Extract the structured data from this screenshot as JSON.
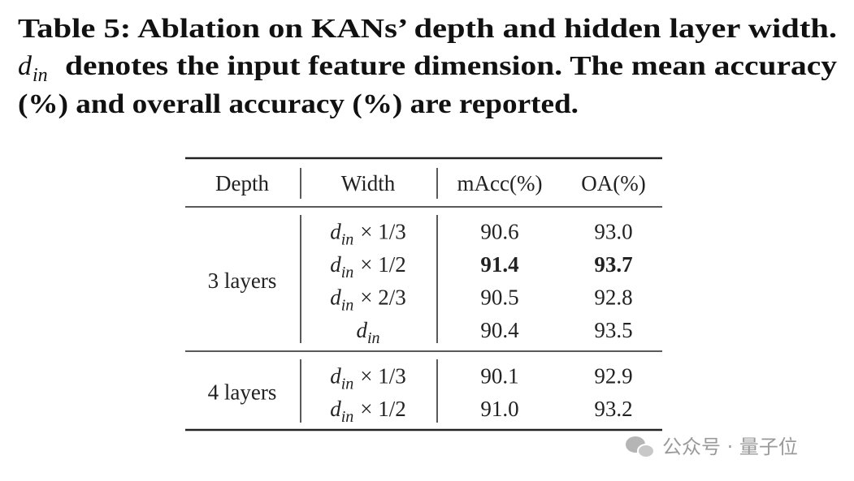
{
  "caption": {
    "title": "Table 5: Ablation on KANs’ depth and hidden layer width.",
    "symbol": {
      "base": "d",
      "sub": "in"
    },
    "lines": [
      "denotes the input feature dimension. The mean accuracy",
      "(%) and overall accuracy (%) are reported."
    ]
  },
  "table": {
    "headers": [
      "Depth",
      "Width",
      "mAcc(%)",
      "OA(%)"
    ],
    "groups": [
      {
        "depth": "3 layers",
        "rows": [
          {
            "width": {
              "base": "d",
              "sub": "in",
              "factor": "× 1/3"
            },
            "macc": "90.6",
            "oa": "93.0"
          },
          {
            "width": {
              "base": "d",
              "sub": "in",
              "factor": "× 1/2"
            },
            "macc": "91.4",
            "oa": "93.7",
            "bold": true
          },
          {
            "width": {
              "base": "d",
              "sub": "in",
              "factor": "× 2/3"
            },
            "macc": "90.5",
            "oa": "92.8"
          },
          {
            "width": {
              "base": "d",
              "sub": "in"
            },
            "macc": "90.4",
            "oa": "93.5"
          }
        ]
      },
      {
        "depth": "4 layers",
        "rows": [
          {
            "width": {
              "base": "d",
              "sub": "in",
              "factor": "× 1/3"
            },
            "macc": "90.1",
            "oa": "92.9"
          },
          {
            "width": {
              "base": "d",
              "sub": "in",
              "factor": "× 1/2"
            },
            "macc": "91.0",
            "oa": "93.2"
          }
        ]
      }
    ]
  },
  "watermark": "公众号 · 量子位"
}
